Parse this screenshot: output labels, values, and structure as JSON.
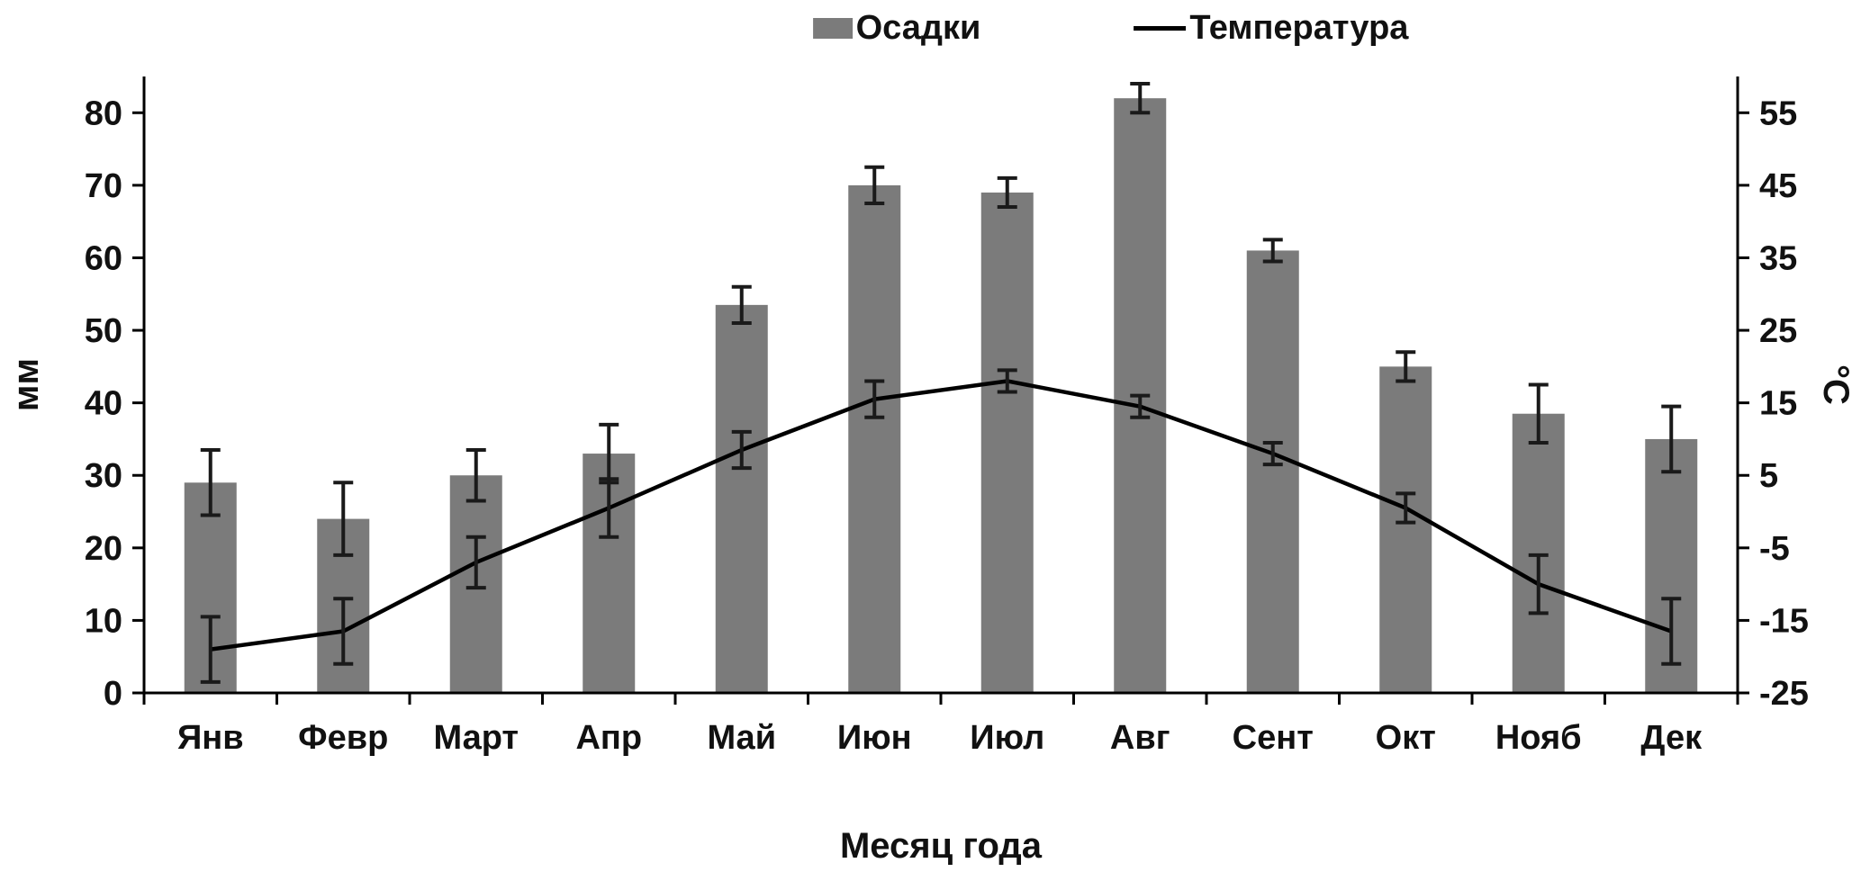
{
  "chart_data": {
    "type": "bar",
    "subtype": "column-line-combo-with-error-bars",
    "title": "",
    "xlabel": "Месяц года",
    "grid": false,
    "legend": {
      "items": [
        "Осадки",
        "Температура"
      ],
      "position": "top"
    },
    "categories": [
      "Янв",
      "Февр",
      "Март",
      "Апр",
      "Май",
      "Июн",
      "Июл",
      "Авг",
      "Сент",
      "Окт",
      "Нояб",
      "Дек"
    ],
    "series": [
      {
        "name": "Осадки",
        "type": "bar",
        "axis": "left",
        "unit": "мм",
        "color": "#7b7b7b",
        "values": [
          29,
          24,
          30,
          33,
          53.5,
          70,
          69,
          82,
          61,
          45,
          38.5,
          35
        ],
        "errors": [
          4.5,
          5,
          3.5,
          4,
          2.5,
          2.5,
          2,
          2,
          1.5,
          2,
          4,
          4.5
        ]
      },
      {
        "name": "Температура",
        "type": "line",
        "axis": "right",
        "unit": "°C",
        "color": "#000000",
        "values": [
          -19,
          -16.5,
          -7,
          0.5,
          8.5,
          15.5,
          18,
          14.5,
          8,
          0.5,
          -10,
          -16.5
        ],
        "errors": [
          4.5,
          4.5,
          3.5,
          4,
          2.5,
          2.5,
          1.5,
          1.5,
          1.5,
          2,
          4,
          4.5
        ]
      }
    ],
    "left_axis": {
      "label": "мм",
      "range": [
        0,
        85
      ],
      "ticks": [
        0,
        10,
        20,
        30,
        40,
        50,
        60,
        70,
        80
      ]
    },
    "right_axis": {
      "label": "°C",
      "range": [
        -25,
        60
      ],
      "ticks": [
        -25,
        -15,
        -5,
        5,
        15,
        25,
        35,
        45,
        55
      ]
    }
  }
}
